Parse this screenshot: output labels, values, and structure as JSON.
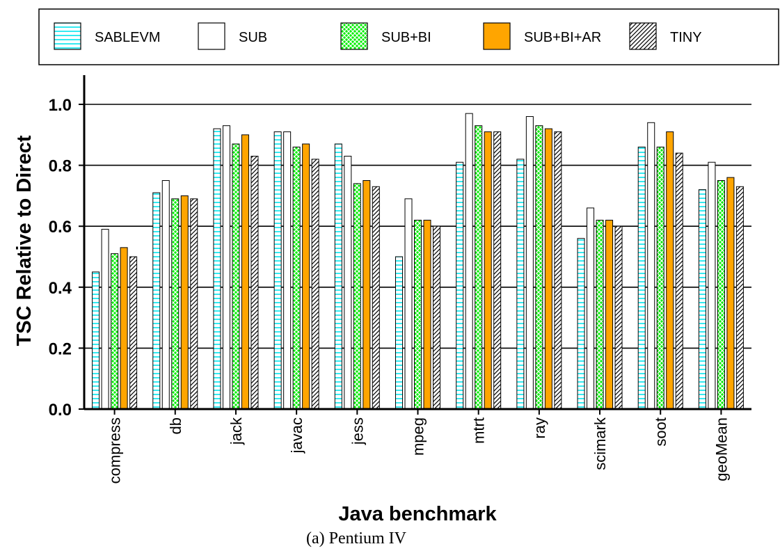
{
  "chart_data": {
    "type": "bar",
    "title": "",
    "caption": "(a) Pentium IV",
    "xlabel": "Java benchmark",
    "ylabel": "TSC Relative to Direct",
    "ylim": [
      0,
      1.1
    ],
    "yticks": [
      "0.0",
      "0.2",
      "0.4",
      "0.6",
      "0.8",
      "1.0"
    ],
    "grid": "horizontal",
    "legend_position": "top",
    "categories": [
      "compress",
      "db",
      "jack",
      "javac",
      "jess",
      "mpeg",
      "mtrt",
      "ray",
      "scimark",
      "soot",
      "geoMean"
    ],
    "series": [
      {
        "name": "SABLEVM",
        "pattern": "cyan-horizontal-lines",
        "color": "#00e5ee",
        "values": [
          0.45,
          0.71,
          0.92,
          0.91,
          0.87,
          0.5,
          0.81,
          0.82,
          0.56,
          0.86,
          0.72
        ]
      },
      {
        "name": "SUB",
        "pattern": "plain-white",
        "color": "#ffffff",
        "values": [
          0.59,
          0.75,
          0.93,
          0.91,
          0.83,
          0.69,
          0.97,
          0.96,
          0.66,
          0.94,
          0.81
        ]
      },
      {
        "name": "SUB+BI",
        "pattern": "green-crosshatch",
        "color": "#00ee00",
        "values": [
          0.51,
          0.69,
          0.87,
          0.86,
          0.74,
          0.62,
          0.93,
          0.93,
          0.62,
          0.86,
          0.75
        ]
      },
      {
        "name": "SUB+BI+AR",
        "pattern": "solid-orange",
        "color": "#ffa500",
        "values": [
          0.53,
          0.7,
          0.9,
          0.87,
          0.75,
          0.62,
          0.91,
          0.92,
          0.62,
          0.91,
          0.76
        ]
      },
      {
        "name": "TINY",
        "pattern": "black-diagonal-hatch",
        "color": "#000000",
        "values": [
          0.5,
          0.69,
          0.83,
          0.82,
          0.73,
          0.6,
          0.91,
          0.91,
          0.6,
          0.84,
          0.73
        ]
      }
    ]
  }
}
